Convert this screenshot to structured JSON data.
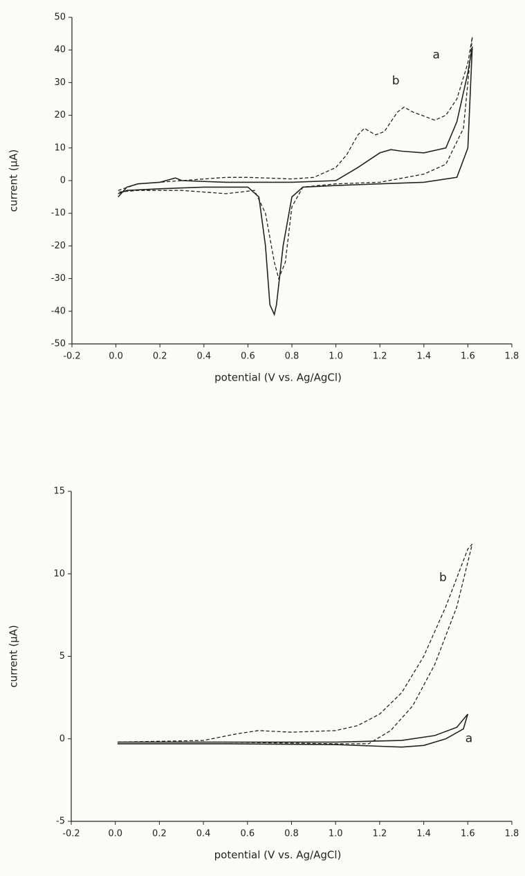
{
  "chart_data": [
    {
      "type": "line",
      "xlabel": "potential (V vs. Ag/AgCl)",
      "ylabel": "current (μA)",
      "xlim": [
        -0.2,
        1.8
      ],
      "ylim": [
        -50,
        50
      ],
      "xticks": [
        -0.2,
        {
          "value": 0,
          "label": "0.0"
        },
        0.2,
        0.4,
        0.6,
        0.8,
        {
          "value": 1,
          "label": "1.0"
        },
        1.2,
        1.4,
        1.6,
        1.8
      ],
      "yticks": [
        -50,
        -40,
        -30,
        -20,
        -10,
        0,
        10,
        20,
        30,
        40,
        50
      ],
      "series": [
        {
          "name": "a",
          "color": "#222222",
          "dash": false,
          "x": [
            0.01,
            0.05,
            0.1,
            0.2,
            0.27,
            0.3,
            0.5,
            0.8,
            1.0,
            1.1,
            1.2,
            1.25,
            1.3,
            1.4,
            1.5,
            1.55,
            1.6,
            1.62,
            1.6,
            1.55,
            1.4,
            1.2,
            1.0,
            0.85,
            0.8,
            0.76,
            0.73,
            0.72,
            0.7,
            0.68,
            0.65,
            0.6,
            0.4,
            0.2,
            0.05,
            0.01
          ],
          "values": [
            -5,
            -2,
            -1,
            -0.5,
            0.8,
            0,
            -0.5,
            -0.5,
            0,
            4,
            8.5,
            9.5,
            9,
            8.5,
            10,
            18,
            33,
            41,
            10,
            1,
            -0.5,
            -1,
            -1.5,
            -2,
            -5,
            -20,
            -38,
            -41,
            -38,
            -20,
            -5,
            -2,
            -2,
            -2.5,
            -3,
            -4
          ]
        },
        {
          "name": "b",
          "color": "#222222",
          "dash": true,
          "x": [
            0.01,
            0.1,
            0.3,
            0.5,
            0.6,
            0.8,
            0.9,
            1.0,
            1.05,
            1.1,
            1.13,
            1.18,
            1.22,
            1.28,
            1.31,
            1.35,
            1.45,
            1.5,
            1.55,
            1.6,
            1.62,
            1.58,
            1.5,
            1.4,
            1.2,
            1.0,
            0.85,
            0.8,
            0.77,
            0.74,
            0.72,
            0.68,
            0.63,
            0.5,
            0.3,
            0.1,
            0.01
          ],
          "values": [
            -3,
            -1,
            0,
            1,
            1,
            0.5,
            1,
            4,
            8,
            14,
            16,
            14,
            15,
            21,
            22.5,
            21,
            18.5,
            20,
            25,
            36,
            44,
            16,
            5,
            2,
            -0.5,
            -1,
            -2,
            -8,
            -25,
            -30,
            -25,
            -10,
            -3,
            -4,
            -3,
            -3,
            -3.5
          ]
        }
      ]
    },
    {
      "type": "line",
      "xlabel": "potential (V vs. Ag/AgCl)",
      "ylabel": "current (μA)",
      "xlim": [
        -0.2,
        1.8
      ],
      "ylim": [
        -5,
        15
      ],
      "xticks": [
        -0.2,
        {
          "value": 0,
          "label": "0.0"
        },
        0.2,
        0.4,
        0.6,
        0.8,
        {
          "value": 1,
          "label": "1.0"
        },
        1.2,
        1.4,
        1.6,
        1.8
      ],
      "yticks": [
        -5,
        0,
        5,
        10,
        15
      ],
      "series": [
        {
          "name": "a",
          "color": "#222222",
          "dash": false,
          "x": [
            0.01,
            0.5,
            1.0,
            1.3,
            1.45,
            1.55,
            1.6,
            1.58,
            1.5,
            1.4,
            1.3,
            1.2,
            1.0,
            0.5,
            0.01
          ],
          "values": [
            -0.2,
            -0.2,
            -0.2,
            -0.1,
            0.2,
            0.7,
            1.5,
            0.6,
            0,
            -0.4,
            -0.5,
            -0.45,
            -0.35,
            -0.3,
            -0.3
          ]
        },
        {
          "name": "b",
          "color": "#222222",
          "dash": true,
          "x": [
            0.01,
            0.4,
            0.55,
            0.65,
            0.8,
            1.0,
            1.1,
            1.2,
            1.3,
            1.4,
            1.5,
            1.6,
            1.62,
            1.55,
            1.45,
            1.35,
            1.25,
            1.15,
            1.0,
            0.5,
            0.01
          ],
          "values": [
            -0.2,
            -0.1,
            0.3,
            0.5,
            0.4,
            0.5,
            0.8,
            1.5,
            2.8,
            5,
            8,
            11.5,
            11.8,
            8,
            4.5,
            2,
            0.5,
            -0.3,
            -0.3,
            -0.2,
            -0.2
          ]
        }
      ]
    }
  ]
}
